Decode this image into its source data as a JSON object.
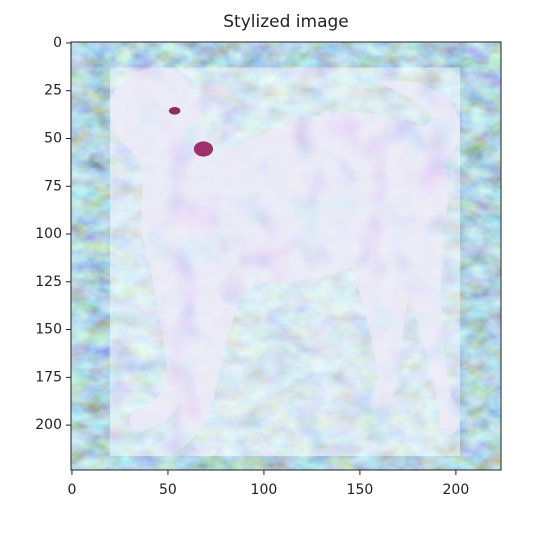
{
  "chart_data": {
    "type": "image",
    "title": "Stylized image",
    "xlim": [
      -0.5,
      223.5
    ],
    "ylim": [
      223.5,
      -0.5
    ],
    "xticks": [
      0,
      50,
      100,
      150,
      200
    ],
    "yticks": [
      0,
      25,
      50,
      75,
      100,
      125,
      150,
      175,
      200
    ]
  }
}
